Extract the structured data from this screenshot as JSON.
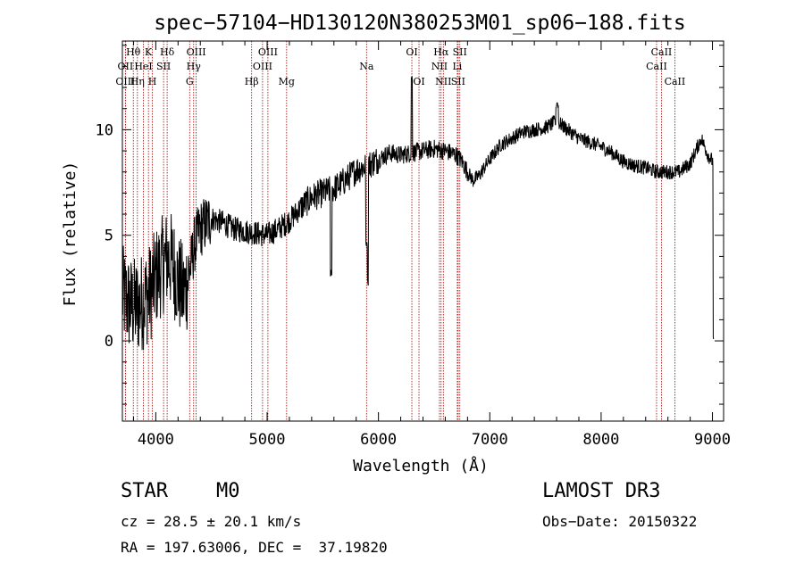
{
  "chart_data": {
    "type": "line",
    "title": "spec−57104−HD130120N380253M01_sp06−188.fits",
    "xlabel": "Wavelength (Å)",
    "ylabel": "Flux (relative)",
    "xlim": [
      3700,
      9100
    ],
    "ylim": [
      -3.8,
      14.2
    ],
    "x_ticks": [
      {
        "value": 4000,
        "label": "4000"
      },
      {
        "value": 5000,
        "label": "5000"
      },
      {
        "value": 6000,
        "label": "6000"
      },
      {
        "value": 7000,
        "label": "7000"
      },
      {
        "value": 8000,
        "label": "8000"
      },
      {
        "value": 9000,
        "label": "9000"
      }
    ],
    "y_ticks": [
      {
        "value": 0,
        "label": "0"
      },
      {
        "value": 5,
        "label": "5"
      },
      {
        "value": 10,
        "label": "10"
      }
    ],
    "line_color": "#000000",
    "marker_color": "#a00000",
    "spectral_lines": [
      {
        "label": "Hθ",
        "wavelength": 3798,
        "row": 1
      },
      {
        "label": "OII",
        "wavelength": 3727,
        "row": 2
      },
      {
        "label": "OIII",
        "wavelength": 3727,
        "row": 3
      },
      {
        "label": "Hη",
        "wavelength": 3835,
        "row": 3
      },
      {
        "label": "HeI",
        "wavelength": 3889,
        "row": 2
      },
      {
        "label": "K",
        "wavelength": 3934,
        "row": 1
      },
      {
        "label": "H",
        "wavelength": 3969,
        "row": 3
      },
      {
        "label": "SII",
        "wavelength": 4070,
        "row": 2
      },
      {
        "label": "Hδ",
        "wavelength": 4102,
        "row": 1
      },
      {
        "label": "OIII",
        "wavelength": 4363,
        "row": 1
      },
      {
        "label": "Hγ",
        "wavelength": 4340,
        "row": 2
      },
      {
        "label": "G",
        "wavelength": 4304,
        "row": 3
      },
      {
        "label": "Hβ",
        "wavelength": 4861,
        "row": 3
      },
      {
        "label": "OIII",
        "wavelength": 4959,
        "row": 2
      },
      {
        "label": "OIII",
        "wavelength": 5007,
        "row": 1
      },
      {
        "label": "Mg",
        "wavelength": 5175,
        "row": 3
      },
      {
        "label": "Na",
        "wavelength": 5893,
        "row": 2
      },
      {
        "label": "OI",
        "wavelength": 6300,
        "row": 1
      },
      {
        "label": "OI",
        "wavelength": 6364,
        "row": 3
      },
      {
        "label": "NII",
        "wavelength": 6548,
        "row": 2
      },
      {
        "label": "Hα",
        "wavelength": 6563,
        "row": 1
      },
      {
        "label": "NII",
        "wavelength": 6583,
        "row": 3
      },
      {
        "label": "Li",
        "wavelength": 6708,
        "row": 2
      },
      {
        "label": "SII",
        "wavelength": 6716,
        "row": 3
      },
      {
        "label": "SII",
        "wavelength": 6731,
        "row": 1
      },
      {
        "label": "CaII",
        "wavelength": 8498,
        "row": 2
      },
      {
        "label": "CaII",
        "wavelength": 8542,
        "row": 1
      },
      {
        "label": "CaII",
        "wavelength": 8662,
        "row": 3
      }
    ],
    "spectrum_anchors": [
      [
        3700,
        2.2
      ],
      [
        3750,
        1.8
      ],
      [
        3800,
        1.6
      ],
      [
        3850,
        1.7
      ],
      [
        3900,
        2.0
      ],
      [
        3950,
        2.3
      ],
      [
        4000,
        3.0
      ],
      [
        4050,
        3.5
      ],
      [
        4100,
        3.9
      ],
      [
        4150,
        3.7
      ],
      [
        4200,
        2.8
      ],
      [
        4250,
        2.2
      ],
      [
        4300,
        3.2
      ],
      [
        4350,
        4.6
      ],
      [
        4400,
        5.3
      ],
      [
        4500,
        5.8
      ],
      [
        4600,
        5.6
      ],
      [
        4700,
        5.3
      ],
      [
        4800,
        5.2
      ],
      [
        4900,
        5.1
      ],
      [
        5000,
        5.0
      ],
      [
        5100,
        5.3
      ],
      [
        5200,
        5.7
      ],
      [
        5300,
        6.3
      ],
      [
        5400,
        6.8
      ],
      [
        5500,
        7.0
      ],
      [
        5600,
        7.2
      ],
      [
        5700,
        7.6
      ],
      [
        5800,
        8.1
      ],
      [
        5900,
        8.3
      ],
      [
        6000,
        8.6
      ],
      [
        6100,
        8.9
      ],
      [
        6200,
        8.8
      ],
      [
        6300,
        8.9
      ],
      [
        6400,
        9.0
      ],
      [
        6500,
        9.1
      ],
      [
        6600,
        9.0
      ],
      [
        6700,
        8.8
      ],
      [
        6750,
        8.5
      ],
      [
        6800,
        8.0
      ],
      [
        6850,
        7.6
      ],
      [
        6900,
        7.8
      ],
      [
        7000,
        8.6
      ],
      [
        7100,
        9.3
      ],
      [
        7200,
        9.6
      ],
      [
        7300,
        9.9
      ],
      [
        7400,
        10.0
      ],
      [
        7500,
        10.1
      ],
      [
        7600,
        10.4
      ],
      [
        7700,
        10.0
      ],
      [
        7800,
        9.6
      ],
      [
        7900,
        9.4
      ],
      [
        8000,
        9.2
      ],
      [
        8100,
        8.9
      ],
      [
        8200,
        8.5
      ],
      [
        8300,
        8.3
      ],
      [
        8400,
        8.2
      ],
      [
        8500,
        8.0
      ],
      [
        8600,
        8.0
      ],
      [
        8700,
        8.0
      ],
      [
        8800,
        8.4
      ],
      [
        8900,
        9.6
      ],
      [
        8960,
        8.8
      ],
      [
        9000,
        8.5
      ]
    ],
    "spectrum_features": [
      {
        "wavelength": 5575,
        "flux": 3.2,
        "width": 6
      },
      {
        "wavelength": 5893,
        "flux": 4.5,
        "width": 8
      },
      {
        "wavelength": 5905,
        "flux": 2.8,
        "width": 5
      },
      {
        "wavelength": 6300,
        "flux": 12.5,
        "width": 6
      },
      {
        "wavelength": 7605,
        "flux": 11.2,
        "width": 12
      },
      {
        "wavelength": 9010,
        "flux": 0.0,
        "width": 5
      }
    ]
  },
  "info": {
    "object_type": "STAR",
    "subclass": "M0",
    "survey": "LAMOST DR3",
    "velocity": "cz = 28.5 ± 20.1 km/s",
    "obs_date": "Obs−Date: 20150322",
    "coordinates": "RA = 197.63006, DEC =  37.19820"
  }
}
